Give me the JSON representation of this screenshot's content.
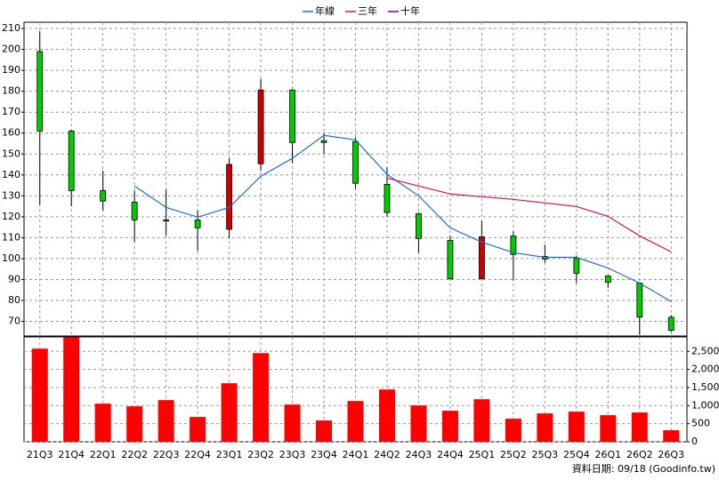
{
  "chart_data": [
    {
      "type": "candlestick",
      "open": [
        199,
        161,
        132.5,
        127,
        118.5,
        118.5,
        114,
        145.3,
        180.6,
        156.4,
        156,
        135.5,
        121.5,
        108.7,
        90.4,
        110.8,
        101,
        100.2,
        91.7,
        88.3,
        72
      ],
      "high": [
        208.7,
        161.5,
        142,
        132.5,
        133,
        123,
        148,
        186,
        181,
        160,
        158,
        143.6,
        122,
        111,
        118,
        113,
        106.6,
        101.5,
        92,
        88.7,
        73
      ],
      "low": [
        125.7,
        125,
        123,
        108,
        111,
        103.6,
        109.6,
        142,
        145.7,
        150,
        133.4,
        120,
        102.8,
        90,
        90,
        89.6,
        98,
        88.3,
        86,
        63.6,
        65
      ],
      "close": [
        161,
        132.5,
        127.5,
        118.5,
        118,
        114.7,
        145,
        180.6,
        155.5,
        155.5,
        136,
        122,
        109.6,
        90.4,
        110.4,
        102,
        99.8,
        93,
        88.7,
        72,
        65.7
      ],
      "up_color": "#cc0000",
      "down_color": "#00cc00",
      "series": [
        {
          "name": "年線",
          "color": "#1e6fd0",
          "values": [
            null,
            null,
            null,
            134.7,
            124.5,
            119.8,
            124.5,
            139.4,
            147.9,
            158.9,
            156.8,
            140.2,
            130,
            114.7,
            107.9,
            102.8,
            100.6,
            100.6,
            95.5,
            88.3,
            79.4
          ]
        },
        {
          "name": "三年",
          "color": "#d0105c",
          "values": [
            null,
            null,
            null,
            null,
            null,
            null,
            null,
            null,
            null,
            null,
            null,
            138.5,
            134.7,
            130.9,
            129.6,
            128.3,
            126.6,
            124.9,
            120.2,
            110.9,
            103.2
          ]
        },
        {
          "name": "十年",
          "color": "#800080",
          "values": [
            null,
            null,
            null,
            null,
            null,
            null,
            null,
            null,
            null,
            null,
            null,
            null,
            null,
            null,
            null,
            null,
            null,
            null,
            null,
            null,
            null
          ]
        }
      ],
      "ylim": [
        63,
        213
      ],
      "yticks": [
        70,
        80,
        90,
        100,
        110,
        120,
        130,
        140,
        150,
        160,
        170,
        180,
        190,
        200,
        210
      ],
      "grid": true
    },
    {
      "type": "bar",
      "color": "#ff0000",
      "categories": [
        "21Q3",
        "21Q4",
        "22Q1",
        "22Q2",
        "22Q3",
        "22Q4",
        "23Q1",
        "23Q2",
        "23Q3",
        "23Q4",
        "24Q1",
        "24Q2",
        "24Q3",
        "24Q4",
        "25Q1",
        "25Q2",
        "25Q3",
        "25Q4",
        "26Q1",
        "26Q2",
        "26Q3"
      ],
      "values": [
        2574,
        2890,
        1054,
        980,
        1152,
        686,
        1618,
        2451,
        1029,
        588,
        1127,
        1446,
        1005,
        858,
        1176,
        637,
        784,
        833,
        735,
        809,
        319
      ],
      "ylim": [
        0,
        2900
      ],
      "yticks": [
        0,
        500,
        {
          "value": 1000,
          "label": "1,000"
        },
        {
          "value": 1500,
          "label": "1,500"
        },
        {
          "value": 2000,
          "label": "2,000"
        },
        {
          "value": 2500,
          "label": "2,500"
        }
      ],
      "grid": true
    }
  ],
  "note": "資料日期: 09/18 (Goodinfo.tw)"
}
